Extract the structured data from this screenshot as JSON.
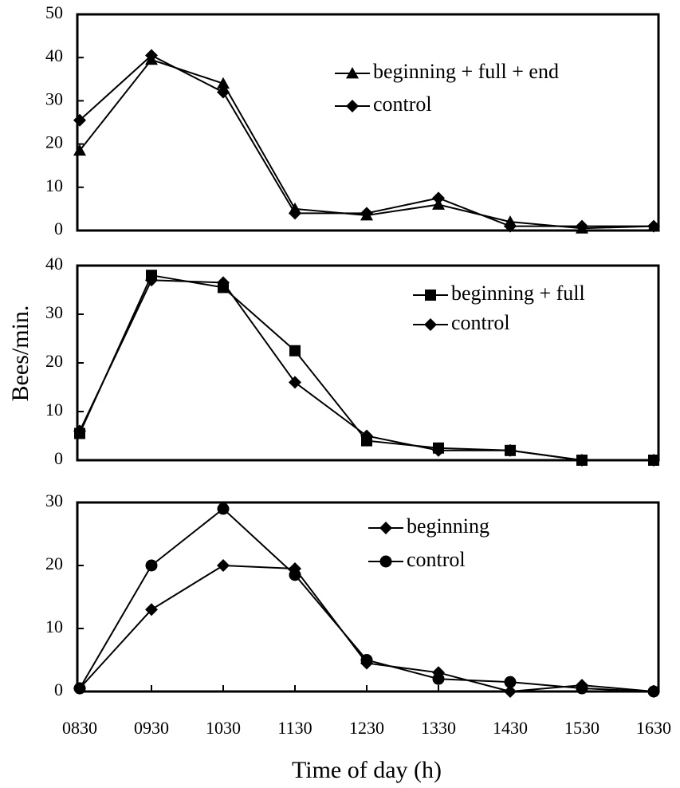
{
  "chart_data": [
    {
      "type": "line",
      "categories": [
        null,
        null,
        null,
        null,
        null,
        null,
        null,
        null,
        null
      ],
      "series": [
        {
          "name": "beginning + full + end",
          "color": "#000000",
          "marker": "triangle",
          "values": [
            18.5,
            39.5,
            34,
            5,
            3.5,
            6,
            2,
            0.5,
            1
          ]
        },
        {
          "name": "control",
          "color": "#000000",
          "marker": "diamond",
          "values": [
            25.5,
            40.5,
            32,
            4,
            4,
            7.5,
            1,
            1,
            1
          ]
        }
      ],
      "ylim": [
        0,
        50
      ],
      "yticks": [
        0,
        10,
        20,
        30,
        40,
        50
      ]
    },
    {
      "type": "line",
      "ylabel": "Bees/min.",
      "categories": [
        null,
        null,
        null,
        null,
        null,
        null,
        null,
        null,
        null
      ],
      "series": [
        {
          "name": "beginning + full",
          "color": "#000000",
          "marker": "square",
          "values": [
            5.5,
            38,
            35.5,
            22.5,
            4,
            2.5,
            2,
            0,
            0
          ]
        },
        {
          "name": "control",
          "color": "#000000",
          "marker": "diamond",
          "values": [
            6,
            37,
            36.5,
            16,
            5,
            2,
            2,
            0,
            0
          ]
        }
      ],
      "ylim": [
        0,
        40
      ],
      "yticks": [
        0,
        10,
        20,
        30,
        40
      ]
    },
    {
      "type": "line",
      "xlabel": "Time of day (h)",
      "categories": [
        "0830",
        "0930",
        "1030",
        "1130",
        "1230",
        "1330",
        "1430",
        "1530",
        "1630"
      ],
      "series": [
        {
          "name": "beginning",
          "color": "#000000",
          "marker": "diamond",
          "values": [
            0.5,
            13,
            20,
            19.5,
            4.5,
            3,
            0,
            1,
            0
          ]
        },
        {
          "name": "control",
          "color": "#000000",
          "marker": "circle",
          "values": [
            0.5,
            20,
            29,
            18.5,
            5,
            2,
            1.5,
            0.5,
            0
          ]
        }
      ],
      "ylim": [
        0,
        30
      ],
      "yticks": [
        0,
        10,
        20,
        30
      ]
    }
  ]
}
